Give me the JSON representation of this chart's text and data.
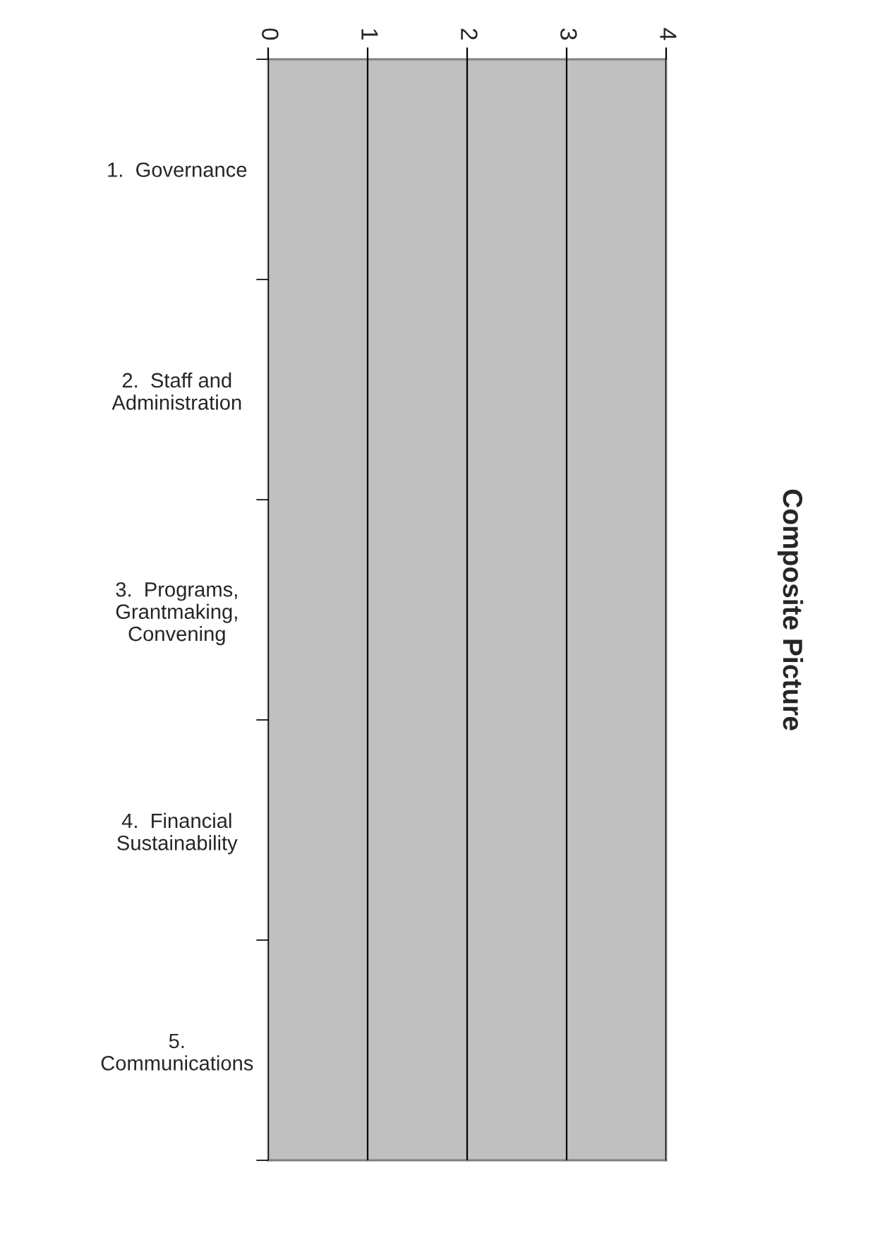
{
  "chart_data": {
    "type": "bar",
    "orientation": "horizontal",
    "title": "Composite Picture",
    "categories": [
      "1.  Governance",
      "2.  Staff and\nAdministration",
      "3.  Programs,\nGrantmaking,\nConvening",
      "4.  Financial\nSustainability",
      "5.\nCommunications"
    ],
    "values": [
      null,
      null,
      null,
      null,
      null
    ],
    "xlim": [
      0,
      4
    ],
    "xticks": [
      0,
      1,
      2,
      3,
      4
    ],
    "grid": "x",
    "legend": false
  }
}
